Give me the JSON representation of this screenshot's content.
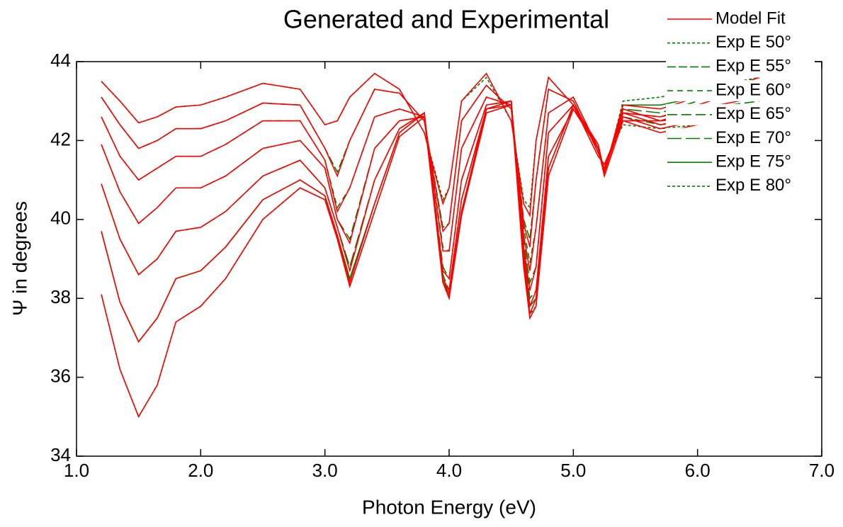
{
  "chart_data": {
    "type": "line",
    "title": "Generated and Experimental",
    "xlabel": "Photon Energy (eV)",
    "ylabel": "Ψ in degrees",
    "xlim": [
      1.0,
      7.0
    ],
    "ylim": [
      34,
      44
    ],
    "xticks": [
      {
        "value": 1,
        "label": "1.0"
      },
      {
        "value": 2,
        "label": "2.0"
      },
      {
        "value": 3,
        "label": "3.0"
      },
      {
        "value": 4,
        "label": "4.0"
      },
      {
        "value": 5,
        "label": "5.0"
      },
      {
        "value": 6,
        "label": "6.0"
      },
      {
        "value": 7,
        "label": "7.0"
      }
    ],
    "yticks": [
      34,
      36,
      38,
      40,
      42,
      44
    ],
    "x": [
      1.2,
      1.35,
      1.5,
      1.65,
      1.8,
      2.0,
      2.2,
      2.5,
      2.8,
      3.0,
      3.1,
      3.2,
      3.4,
      3.6,
      3.8,
      3.95,
      4.0,
      4.1,
      4.3,
      4.5,
      4.6,
      4.65,
      4.7,
      4.8,
      5.0,
      5.2,
      5.25,
      5.4,
      5.7,
      6.0,
      6.5
    ],
    "series": [
      {
        "name": "Model Fit",
        "color": "#ff0000",
        "dash": "none",
        "values": [
          [
            43.5,
            43.0,
            42.45,
            42.6,
            42.85,
            42.9,
            43.1,
            43.45,
            43.3,
            42.4,
            42.5,
            43.1,
            43.7,
            43.3,
            42.2,
            40.4,
            40.8,
            43.0,
            43.7,
            42.5,
            40.4,
            40.1,
            42.0,
            43.6,
            42.9,
            41.6,
            41.4,
            42.5,
            42.5,
            42.8,
            43.1
          ],
          [
            43.1,
            42.4,
            41.8,
            42.0,
            42.3,
            42.3,
            42.5,
            42.95,
            42.9,
            41.8,
            41.1,
            42.0,
            43.3,
            43.2,
            42.5,
            39.7,
            39.9,
            42.5,
            43.4,
            42.8,
            39.9,
            39.3,
            41.0,
            43.3,
            43.0,
            41.7,
            41.3,
            42.7,
            42.6,
            42.9,
            43.4
          ],
          [
            42.6,
            41.6,
            41.0,
            41.3,
            41.6,
            41.6,
            41.9,
            42.5,
            42.5,
            41.5,
            40.2,
            40.8,
            42.6,
            42.8,
            42.6,
            39.2,
            39.2,
            41.8,
            43.1,
            42.9,
            39.6,
            38.7,
            39.8,
            42.7,
            43.1,
            41.8,
            41.2,
            42.9,
            42.8,
            43.1,
            43.6
          ],
          [
            41.9,
            40.7,
            39.9,
            40.3,
            40.8,
            40.8,
            41.1,
            41.8,
            42.0,
            41.3,
            40.0,
            39.4,
            41.8,
            42.5,
            42.6,
            38.7,
            38.5,
            41.0,
            42.9,
            43.0,
            39.3,
            38.2,
            38.8,
            42.2,
            42.9,
            41.8,
            41.2,
            42.8,
            42.5,
            42.6,
            42.8
          ],
          [
            40.9,
            39.5,
            38.6,
            39.0,
            39.7,
            39.8,
            40.2,
            41.1,
            41.5,
            40.8,
            39.8,
            38.7,
            41.0,
            42.3,
            42.7,
            38.5,
            38.2,
            40.5,
            42.8,
            43.0,
            39.1,
            37.8,
            38.2,
            41.6,
            42.8,
            41.8,
            41.2,
            42.7,
            42.4,
            42.6,
            42.7
          ],
          [
            39.7,
            37.9,
            36.9,
            37.5,
            38.5,
            38.7,
            39.3,
            40.5,
            41.0,
            40.6,
            39.6,
            38.4,
            40.4,
            42.2,
            42.7,
            38.4,
            38.1,
            40.2,
            42.8,
            42.9,
            39.0,
            37.6,
            38.0,
            41.3,
            42.9,
            41.9,
            41.2,
            42.6,
            42.3,
            42.5,
            42.6
          ],
          [
            38.1,
            36.2,
            35.0,
            35.8,
            37.4,
            37.8,
            38.5,
            40.0,
            40.8,
            40.5,
            39.5,
            38.3,
            40.2,
            42.1,
            42.6,
            38.4,
            38.0,
            40.1,
            42.7,
            42.9,
            38.8,
            37.5,
            37.8,
            41.1,
            42.8,
            41.8,
            41.1,
            42.5,
            42.2,
            42.4,
            42.5
          ]
        ]
      },
      {
        "name": "Exp E 50°",
        "color": "#008000",
        "dash": "4,3",
        "values": [
          43.5,
          43.0,
          42.45,
          42.6,
          42.85,
          42.9,
          43.1,
          43.45,
          43.3,
          42.4,
          42.5,
          43.1,
          43.7,
          43.3,
          42.2,
          40.5,
          40.8,
          43.0,
          43.6,
          42.5,
          40.5,
          40.3,
          42.0,
          43.6,
          42.9,
          41.6,
          41.4,
          42.4,
          42.3,
          42.4,
          42.6
        ]
      },
      {
        "name": "Exp E 55°",
        "color": "#008000",
        "dash": "12,4",
        "values": [
          43.1,
          42.4,
          41.8,
          42.0,
          42.3,
          42.3,
          42.5,
          42.95,
          42.9,
          41.8,
          41.2,
          42.0,
          43.3,
          43.2,
          42.5,
          39.8,
          39.9,
          42.5,
          43.4,
          42.8,
          40.0,
          39.5,
          41.0,
          43.3,
          43.0,
          41.7,
          41.3,
          42.6,
          42.4,
          42.5,
          42.7
        ]
      },
      {
        "name": "Exp E 60°",
        "color": "#008000",
        "dash": "8,6",
        "values": [
          42.6,
          41.6,
          41.0,
          41.3,
          41.6,
          41.6,
          41.9,
          42.5,
          42.5,
          41.5,
          40.3,
          40.8,
          42.6,
          42.8,
          42.6,
          39.3,
          39.2,
          41.8,
          43.1,
          42.9,
          39.8,
          38.9,
          39.8,
          42.7,
          43.1,
          41.8,
          41.2,
          42.8,
          42.5,
          42.6,
          42.9
        ]
      },
      {
        "name": "Exp E 65°",
        "color": "#008000",
        "dash": "14,6",
        "values": [
          41.9,
          40.7,
          39.9,
          40.3,
          40.8,
          40.8,
          41.1,
          41.8,
          42.0,
          41.3,
          40.0,
          39.5,
          41.8,
          42.5,
          42.6,
          38.8,
          38.5,
          41.0,
          42.9,
          43.0,
          39.5,
          38.4,
          38.8,
          42.2,
          42.9,
          41.8,
          41.2,
          42.7,
          42.6,
          42.8,
          43.0
        ]
      },
      {
        "name": "Exp E 70°",
        "color": "#008000",
        "dash": "20,6",
        "values": [
          40.9,
          39.5,
          38.6,
          39.0,
          39.7,
          39.8,
          40.2,
          41.1,
          41.5,
          40.8,
          39.8,
          38.8,
          41.0,
          42.3,
          42.7,
          38.6,
          38.2,
          40.5,
          42.8,
          43.0,
          39.3,
          38.0,
          38.2,
          41.6,
          42.8,
          41.8,
          41.2,
          42.8,
          42.7,
          43.0,
          43.3
        ]
      },
      {
        "name": "Exp E 75°",
        "color": "#008000",
        "dash": "none",
        "values": [
          39.7,
          37.9,
          36.9,
          37.5,
          38.5,
          38.7,
          39.3,
          40.5,
          41.0,
          40.6,
          39.6,
          38.5,
          40.4,
          42.2,
          42.7,
          38.5,
          38.1,
          40.2,
          42.8,
          42.9,
          39.2,
          37.8,
          38.0,
          41.3,
          42.9,
          41.9,
          41.2,
          42.9,
          42.9,
          43.1,
          43.6
        ]
      },
      {
        "name": "Exp E 80°",
        "color": "#008000",
        "dash": "4,3",
        "values": [
          38.1,
          36.2,
          35.0,
          35.8,
          37.4,
          37.8,
          38.5,
          40.0,
          40.8,
          40.5,
          39.5,
          38.3,
          40.2,
          42.1,
          42.6,
          38.5,
          38.0,
          40.1,
          42.7,
          42.9,
          39.0,
          37.6,
          37.8,
          41.1,
          42.8,
          41.8,
          41.1,
          43.0,
          43.1,
          43.3,
          43.6
        ]
      }
    ]
  }
}
